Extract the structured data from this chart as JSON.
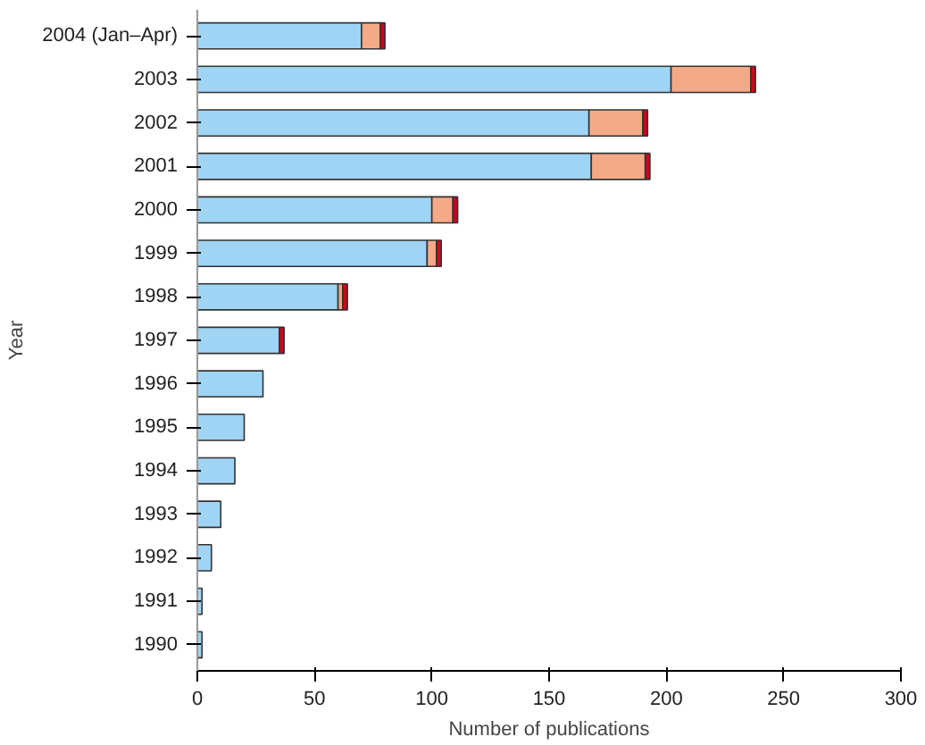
{
  "chart_data": {
    "type": "bar",
    "orientation": "horizontal",
    "stacked": true,
    "xlabel": "Number of publications",
    "ylabel": "Year",
    "categories": [
      "2004 (Jan–Apr)",
      "2003",
      "2002",
      "2001",
      "2000",
      "1999",
      "1998",
      "1997",
      "1996",
      "1995",
      "1994",
      "1993",
      "1992",
      "1991",
      "1990"
    ],
    "series": [
      {
        "color": "#a0d4f4",
        "values": [
          70,
          202,
          167,
          168,
          100,
          98,
          60,
          35,
          28,
          20,
          16,
          10,
          6,
          2,
          2
        ]
      },
      {
        "color": "#f4aa88",
        "values": [
          8,
          34,
          23,
          23,
          9,
          4,
          2,
          null,
          null,
          null,
          null,
          null,
          null,
          null,
          null
        ]
      },
      {
        "color": "#d0021b",
        "values": [
          2,
          2,
          2,
          2,
          2,
          2,
          2,
          2,
          null,
          null,
          null,
          null,
          null,
          null,
          null
        ]
      }
    ],
    "xlim": [
      0,
      300
    ],
    "xticks": [
      0,
      50,
      100,
      150,
      200,
      250,
      300
    ],
    "grid": false
  }
}
